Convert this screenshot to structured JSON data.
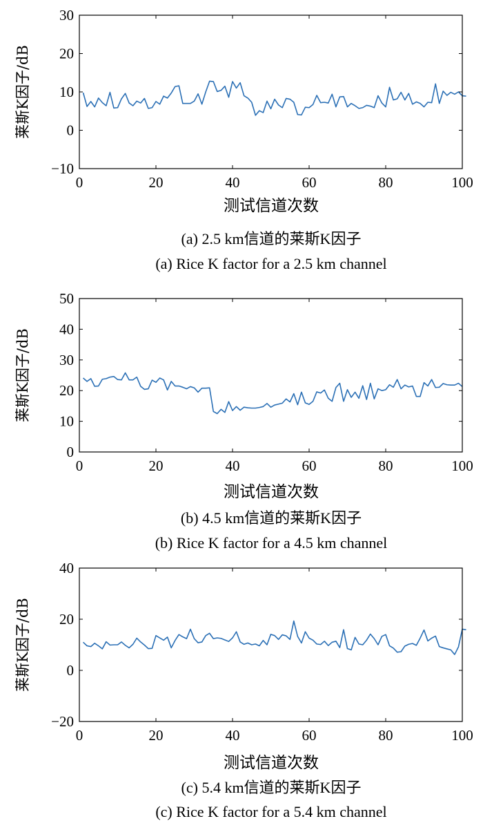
{
  "chart_data": [
    {
      "type": "line",
      "panel": "a",
      "ylabel": "莱斯K因子/dB",
      "xlabel": "测试信道次数",
      "caption_cn": "(a) 2.5 km信道的莱斯K因子",
      "caption_en": "(a) Rice K factor for a 2.5 km channel",
      "xlim": [
        0,
        100
      ],
      "ylim": [
        -10,
        30
      ],
      "xticks": [
        0,
        20,
        40,
        60,
        80,
        100
      ],
      "yticks": [
        -10,
        0,
        10,
        20,
        30
      ],
      "color": "#2a6fb5",
      "series": [
        {
          "values": [
            9.8,
            6.2,
            7.5,
            6.1,
            8.4,
            7.2,
            6.4,
            9.9,
            5.8,
            5.9,
            8.2,
            9.6,
            7.1,
            6.4,
            7.6,
            7.1,
            8.3,
            5.7,
            5.9,
            7.5,
            6.8,
            8.9,
            8.4,
            9.7,
            11.4,
            11.6,
            7.0,
            7.0,
            7.0,
            7.6,
            9.5,
            6.8,
            10.0,
            12.8,
            12.7,
            10.1,
            10.4,
            11.5,
            8.6,
            12.7,
            11.0,
            12.4,
            9.0,
            8.4,
            7.3,
            3.9,
            5.1,
            4.6,
            7.6,
            5.6,
            8.1,
            6.6,
            5.9,
            8.3,
            8.1,
            7.3,
            4.1,
            4.0,
            6.0,
            5.9,
            6.7,
            9.1,
            7.2,
            7.3,
            7.1,
            9.4,
            6.1,
            8.7,
            8.8,
            6.1,
            7.0,
            6.4,
            5.7,
            5.9,
            6.5,
            6.3,
            5.9,
            9.0,
            7.1,
            6.1,
            11.2,
            7.9,
            8.2,
            9.9,
            7.9,
            9.6,
            6.8,
            7.4,
            7.0,
            6.1,
            7.3,
            7.2,
            12.1,
            7.0,
            10.2,
            9.1,
            9.9,
            9.4,
            10.0,
            9.0,
            8.9
          ]
        }
      ]
    },
    {
      "type": "line",
      "panel": "b",
      "ylabel": "莱斯K因子/dB",
      "xlabel": "测试信道次数",
      "caption_cn": "(b) 4.5 km信道的莱斯K因子",
      "caption_en": "(b) Rice K factor for a 4.5 km channel",
      "xlim": [
        0,
        100
      ],
      "ylim": [
        0,
        50
      ],
      "xticks": [
        0,
        20,
        40,
        60,
        80,
        100
      ],
      "yticks": [
        0,
        10,
        20,
        30,
        40,
        50
      ],
      "color": "#2a6fb5",
      "series": [
        {
          "values": [
            24.1,
            23.0,
            23.9,
            21.4,
            21.5,
            23.7,
            23.9,
            24.4,
            24.6,
            23.6,
            23.5,
            25.8,
            23.5,
            23.5,
            24.4,
            21.4,
            20.4,
            20.6,
            23.4,
            22.7,
            24.1,
            23.5,
            20.2,
            23.0,
            21.5,
            21.5,
            21.1,
            20.6,
            21.3,
            20.9,
            19.5,
            20.8,
            20.8,
            20.9,
            13.2,
            12.5,
            13.9,
            12.9,
            16.4,
            13.5,
            14.8,
            13.6,
            14.6,
            14.4,
            14.3,
            14.3,
            14.5,
            14.8,
            15.8,
            14.6,
            15.3,
            15.6,
            15.9,
            17.3,
            16.3,
            19.0,
            15.4,
            19.5,
            16.0,
            15.5,
            16.5,
            19.6,
            19.2,
            20.2,
            17.5,
            16.5,
            21.0,
            22.4,
            16.5,
            20.3,
            17.8,
            19.5,
            17.5,
            21.6,
            17.1,
            22.4,
            17.3,
            20.6,
            20.0,
            20.3,
            21.9,
            21.1,
            23.6,
            20.6,
            21.8,
            21.2,
            21.5,
            18.1,
            18.1,
            22.6,
            21.5,
            23.6,
            21.0,
            21.1,
            22.3,
            21.9,
            21.8,
            21.8,
            22.4,
            21.3
          ]
        }
      ]
    },
    {
      "type": "line",
      "panel": "c",
      "ylabel": "莱斯K因子/dB",
      "xlabel": "测试信道次数",
      "caption_cn": "(c) 5.4 km信道的莱斯K因子",
      "caption_en": "(c) Rice K factor for a 5.4 km channel",
      "xlim": [
        0,
        100
      ],
      "ylim": [
        -20,
        40
      ],
      "xticks": [
        0,
        20,
        40,
        60,
        80,
        100
      ],
      "yticks": [
        -20,
        0,
        20,
        40
      ],
      "color": "#2a6fb5",
      "series": [
        {
          "values": [
            11.0,
            9.6,
            9.3,
            10.6,
            9.6,
            8.4,
            11.2,
            9.9,
            10.0,
            10.0,
            11.1,
            9.8,
            8.8,
            10.2,
            12.6,
            11.1,
            9.9,
            8.5,
            8.6,
            13.6,
            12.7,
            11.8,
            13.0,
            8.8,
            11.7,
            14.0,
            13.1,
            12.4,
            16.1,
            12.4,
            10.8,
            11.1,
            13.6,
            14.5,
            12.4,
            12.7,
            12.5,
            11.9,
            11.3,
            12.7,
            15.1,
            11.1,
            10.2,
            10.7,
            10.0,
            10.3,
            9.6,
            11.7,
            10.0,
            14.1,
            13.6,
            12.1,
            13.9,
            13.5,
            12.1,
            19.3,
            13.3,
            10.7,
            15.1,
            12.6,
            11.8,
            10.3,
            10.1,
            11.4,
            9.7,
            11.0,
            11.4,
            8.9,
            15.9,
            8.5,
            8.0,
            12.9,
            10.3,
            10.0,
            11.8,
            14.2,
            12.4,
            10.0,
            13.3,
            14.0,
            9.6,
            8.7,
            7.1,
            7.3,
            9.5,
            10.2,
            10.5,
            9.8,
            12.6,
            15.8,
            11.5,
            12.6,
            13.4,
            9.3,
            8.8,
            8.4,
            8.0,
            6.2,
            9.2,
            16.1,
            15.9
          ]
        }
      ]
    }
  ]
}
